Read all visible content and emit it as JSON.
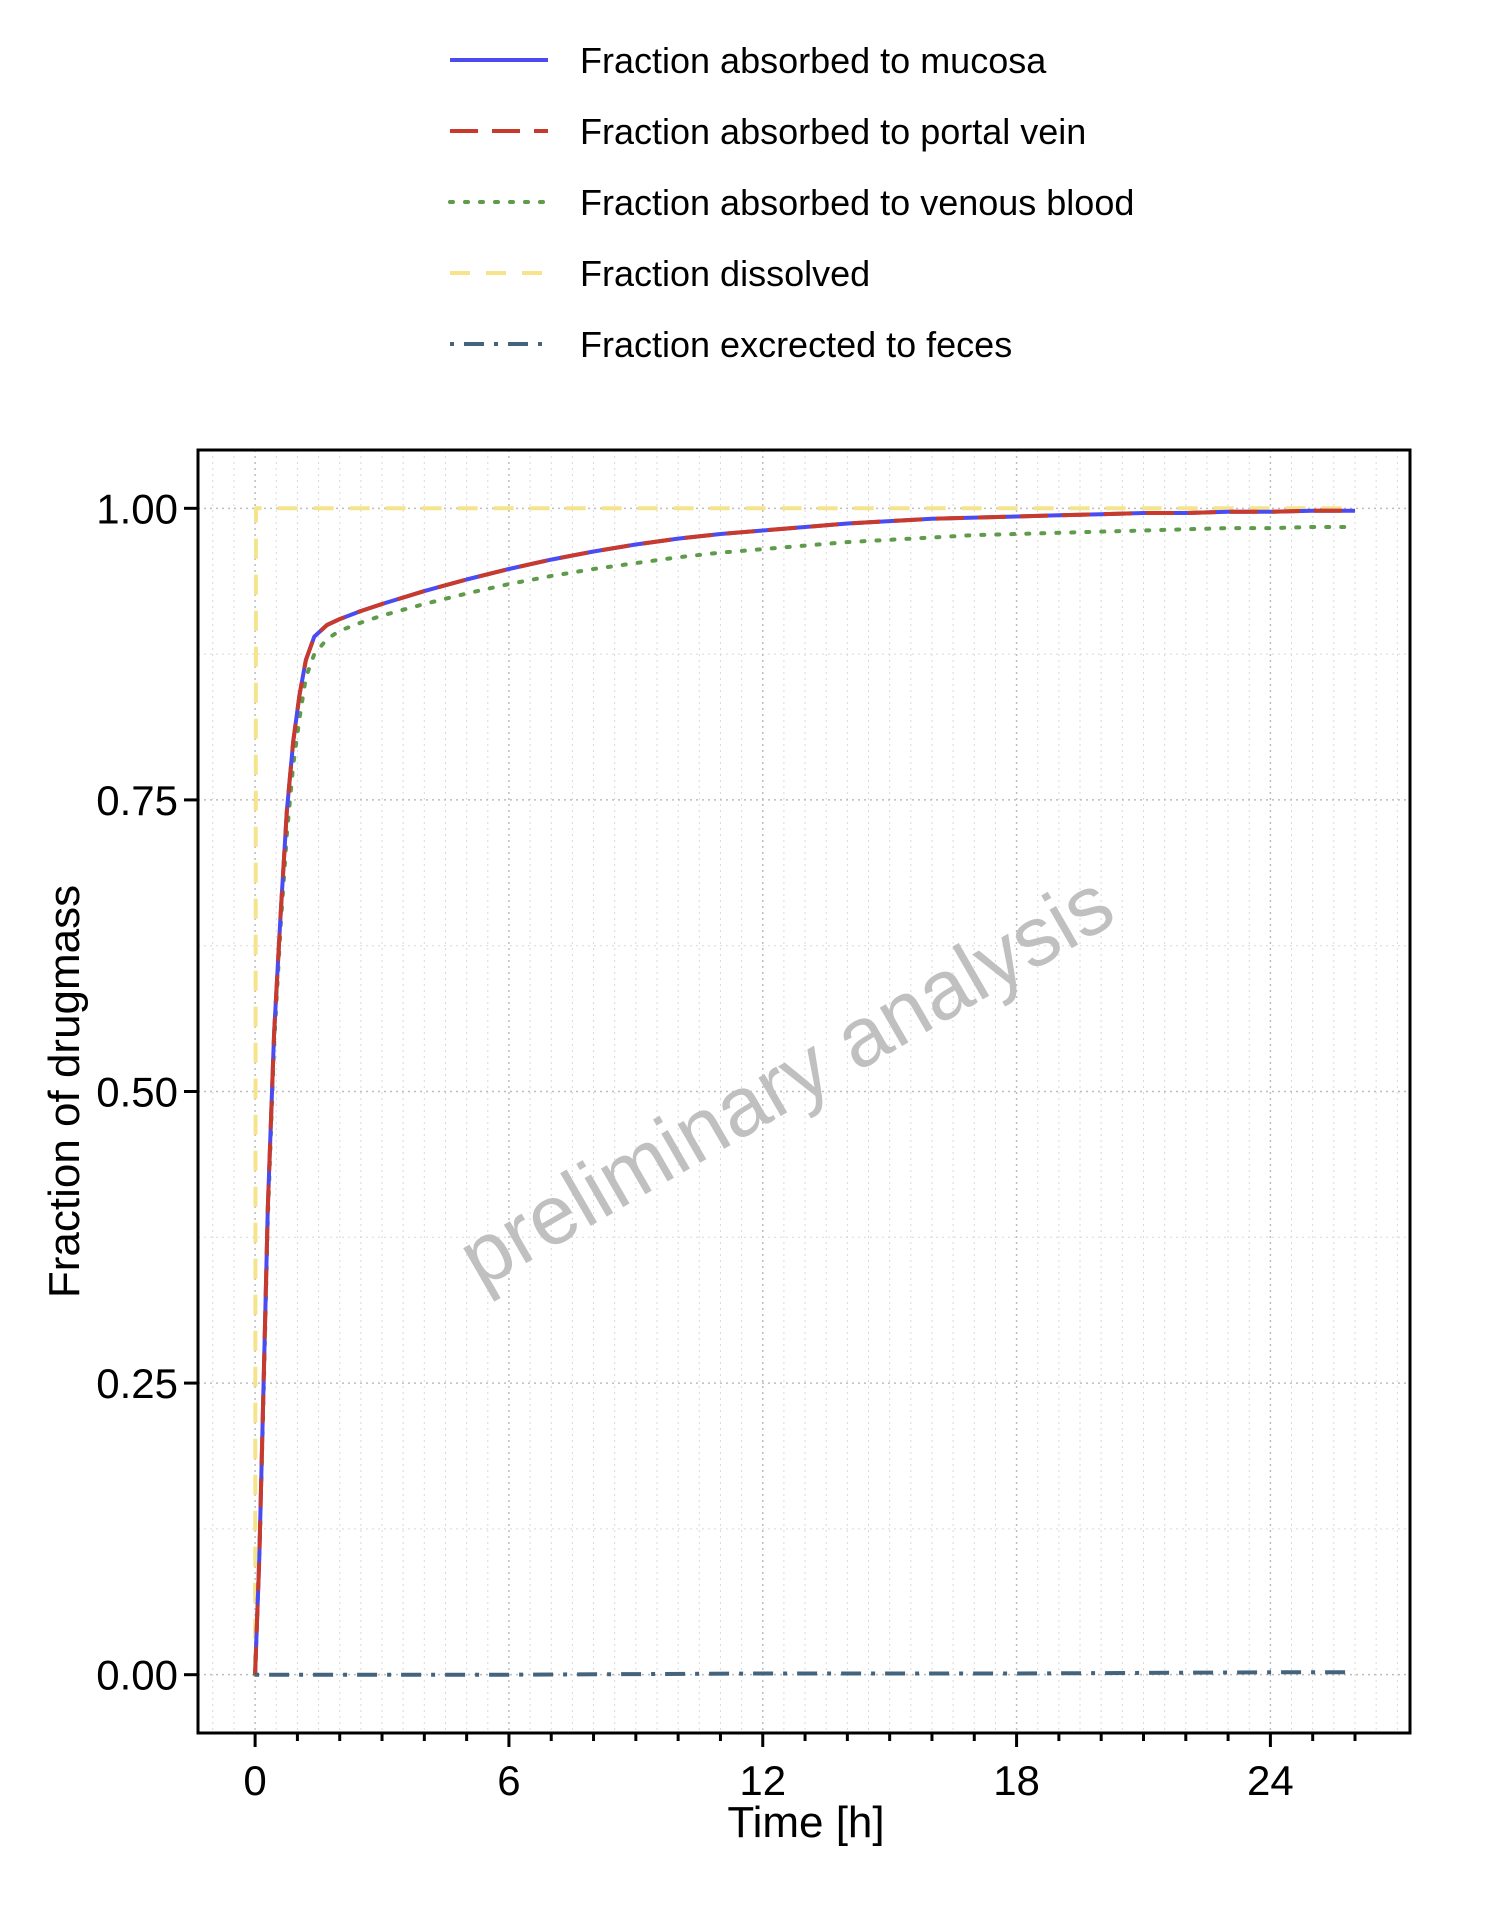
{
  "chart_data": {
    "type": "line",
    "title": "",
    "xlabel": "Time [h]",
    "ylabel": "Fraction of drugmass",
    "xlim": [
      -1.35,
      27.3
    ],
    "ylim": [
      -0.05,
      1.05
    ],
    "xticks": [
      0,
      6,
      12,
      18,
      24
    ],
    "xtick_labels": [
      "0",
      "6",
      "12",
      "18",
      "24"
    ],
    "yticks": [
      0,
      0.25,
      0.5,
      0.75,
      1.0
    ],
    "ytick_labels": [
      "0.00",
      "0.25",
      "0.50",
      "0.75",
      "1.00"
    ],
    "grid": true,
    "legend_position": "top",
    "watermark": "preliminary analysis",
    "series": [
      {
        "name": "Fraction absorbed to mucosa",
        "color": "#4B4BF0",
        "dash": "solid",
        "x": [
          0,
          0.1,
          0.2,
          0.3,
          0.45,
          0.6,
          0.75,
          0.9,
          1.05,
          1.2,
          1.4,
          1.7,
          2.0,
          2.5,
          3,
          4,
          5,
          6,
          7,
          8,
          9,
          10,
          11,
          12,
          13,
          14,
          15,
          16,
          17,
          18,
          19,
          20,
          21,
          22,
          23,
          24,
          25,
          26
        ],
        "y": [
          0,
          0.1,
          0.25,
          0.4,
          0.55,
          0.65,
          0.74,
          0.8,
          0.84,
          0.87,
          0.89,
          0.9,
          0.905,
          0.912,
          0.918,
          0.929,
          0.939,
          0.948,
          0.956,
          0.963,
          0.969,
          0.974,
          0.978,
          0.981,
          0.984,
          0.987,
          0.989,
          0.991,
          0.992,
          0.993,
          0.994,
          0.995,
          0.996,
          0.996,
          0.997,
          0.997,
          0.998,
          0.998
        ]
      },
      {
        "name": "Fraction absorbed to portal vein",
        "color": "#C83A2C",
        "dash": "longdash",
        "x": [
          0,
          0.1,
          0.2,
          0.3,
          0.45,
          0.6,
          0.75,
          0.9,
          1.05,
          1.2,
          1.4,
          1.7,
          2.0,
          2.5,
          3,
          4,
          5,
          6,
          7,
          8,
          9,
          10,
          11,
          12,
          13,
          14,
          15,
          16,
          17,
          18,
          19,
          20,
          21,
          22,
          23,
          24,
          25,
          26
        ],
        "y": [
          0,
          0.1,
          0.25,
          0.4,
          0.55,
          0.65,
          0.74,
          0.8,
          0.84,
          0.87,
          0.89,
          0.9,
          0.905,
          0.912,
          0.918,
          0.929,
          0.939,
          0.948,
          0.956,
          0.963,
          0.969,
          0.974,
          0.978,
          0.981,
          0.984,
          0.987,
          0.989,
          0.991,
          0.992,
          0.993,
          0.994,
          0.995,
          0.996,
          0.996,
          0.997,
          0.997,
          0.998,
          0.998
        ]
      },
      {
        "name": "Fraction absorbed to venous blood",
        "color": "#5E9B4A",
        "dash": "dotted",
        "x": [
          0,
          0.1,
          0.2,
          0.3,
          0.45,
          0.6,
          0.75,
          0.9,
          1.05,
          1.2,
          1.4,
          1.7,
          2.0,
          2.5,
          3,
          4,
          5,
          6,
          7,
          8,
          9,
          10,
          11,
          12,
          13,
          14,
          15,
          16,
          17,
          18,
          19,
          20,
          21,
          22,
          23,
          24,
          25,
          26
        ],
        "y": [
          0,
          0.1,
          0.24,
          0.39,
          0.54,
          0.64,
          0.72,
          0.78,
          0.82,
          0.855,
          0.875,
          0.888,
          0.895,
          0.902,
          0.908,
          0.918,
          0.927,
          0.935,
          0.942,
          0.948,
          0.953,
          0.958,
          0.962,
          0.965,
          0.968,
          0.971,
          0.973,
          0.975,
          0.977,
          0.978,
          0.979,
          0.98,
          0.981,
          0.982,
          0.983,
          0.983,
          0.984,
          0.984
        ]
      },
      {
        "name": "Fraction dissolved",
        "color": "#F5E48C",
        "dash": "dashed",
        "x": [
          0,
          0.02,
          26
        ],
        "y": [
          0,
          1.0,
          1.0
        ]
      },
      {
        "name": "Fraction excrected to feces",
        "color": "#44637C",
        "dash": "dotdash",
        "x": [
          0,
          6,
          12,
          18,
          24,
          26
        ],
        "y": [
          0,
          0,
          0.001,
          0.001,
          0.002,
          0.002
        ]
      }
    ]
  }
}
